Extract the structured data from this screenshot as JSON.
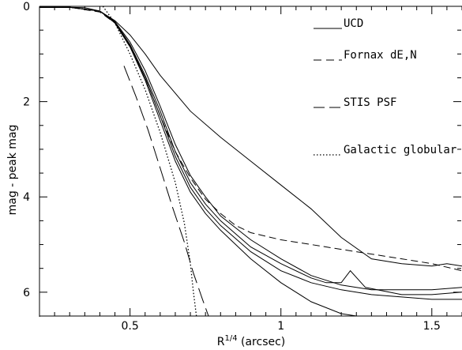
{
  "chart_data": {
    "type": "line",
    "title": "",
    "xlabel": "R",
    "xlabel_sup": "1/4",
    "xlabel_suffix": " (arcsec)",
    "ylabel": "mag - peak mag",
    "xlim": [
      0.2,
      1.6
    ],
    "ylim": [
      0,
      6.5
    ],
    "y_inverted": true,
    "grid": false,
    "legend_placement": "top-right",
    "x_ticks": [
      {
        "value": 0.5,
        "label": "0.5"
      },
      {
        "value": 1.0,
        "label": "1"
      },
      {
        "value": 1.5,
        "label": "1.5"
      }
    ],
    "y_ticks": [
      {
        "value": 0,
        "label": "0"
      },
      {
        "value": 2,
        "label": "2"
      },
      {
        "value": 4,
        "label": "4"
      },
      {
        "value": 6,
        "label": "6"
      }
    ],
    "legend": [
      {
        "label": "UCD",
        "style": "solid"
      },
      {
        "label": "Fornax dE,N",
        "style": "dashed"
      },
      {
        "label": "STIS PSF",
        "style": "longdash"
      },
      {
        "label": "Galactic globular",
        "style": "dotted"
      }
    ],
    "series": [
      {
        "legend": "UCD",
        "style": "solid",
        "points": [
          [
            0.2,
            0.02
          ],
          [
            0.25,
            0.02
          ],
          [
            0.3,
            0.02
          ],
          [
            0.35,
            0.03
          ],
          [
            0.4,
            0.1
          ],
          [
            0.45,
            0.3
          ],
          [
            0.5,
            0.6
          ],
          [
            0.55,
            1.0
          ],
          [
            0.6,
            1.45
          ],
          [
            0.7,
            2.2
          ],
          [
            0.8,
            2.75
          ],
          [
            0.9,
            3.25
          ],
          [
            1.0,
            3.75
          ],
          [
            1.1,
            4.25
          ],
          [
            1.2,
            4.85
          ],
          [
            1.3,
            5.3
          ],
          [
            1.4,
            5.4
          ],
          [
            1.5,
            5.45
          ],
          [
            1.55,
            5.4
          ],
          [
            1.6,
            5.45
          ]
        ]
      },
      {
        "legend": "UCD",
        "style": "solid",
        "points": [
          [
            0.2,
            0.02
          ],
          [
            0.3,
            0.02
          ],
          [
            0.4,
            0.1
          ],
          [
            0.45,
            0.32
          ],
          [
            0.5,
            0.75
          ],
          [
            0.55,
            1.35
          ],
          [
            0.6,
            2.1
          ],
          [
            0.65,
            2.9
          ],
          [
            0.7,
            3.55
          ],
          [
            0.75,
            4.0
          ],
          [
            0.8,
            4.4
          ],
          [
            0.9,
            4.9
          ],
          [
            1.0,
            5.3
          ],
          [
            1.1,
            5.65
          ],
          [
            1.2,
            5.85
          ],
          [
            1.3,
            5.95
          ],
          [
            1.4,
            5.95
          ],
          [
            1.5,
            5.95
          ],
          [
            1.6,
            5.9
          ]
        ]
      },
      {
        "legend": "UCD",
        "style": "solid",
        "points": [
          [
            0.2,
            0.02
          ],
          [
            0.3,
            0.02
          ],
          [
            0.4,
            0.1
          ],
          [
            0.45,
            0.33
          ],
          [
            0.5,
            0.8
          ],
          [
            0.55,
            1.45
          ],
          [
            0.6,
            2.2
          ],
          [
            0.65,
            3.05
          ],
          [
            0.7,
            3.7
          ],
          [
            0.75,
            4.15
          ],
          [
            0.8,
            4.5
          ],
          [
            0.9,
            5.05
          ],
          [
            1.0,
            5.4
          ],
          [
            1.1,
            5.7
          ],
          [
            1.15,
            5.8
          ],
          [
            1.2,
            5.8
          ],
          [
            1.23,
            5.55
          ],
          [
            1.28,
            5.9
          ],
          [
            1.4,
            6.05
          ],
          [
            1.5,
            6.05
          ],
          [
            1.6,
            6.0
          ]
        ]
      },
      {
        "legend": "UCD",
        "style": "solid",
        "points": [
          [
            0.2,
            0.02
          ],
          [
            0.3,
            0.02
          ],
          [
            0.4,
            0.1
          ],
          [
            0.45,
            0.34
          ],
          [
            0.5,
            0.82
          ],
          [
            0.55,
            1.5
          ],
          [
            0.6,
            2.3
          ],
          [
            0.65,
            3.15
          ],
          [
            0.7,
            3.8
          ],
          [
            0.75,
            4.25
          ],
          [
            0.8,
            4.6
          ],
          [
            0.9,
            5.15
          ],
          [
            1.0,
            5.55
          ],
          [
            1.1,
            5.8
          ],
          [
            1.2,
            5.95
          ],
          [
            1.3,
            6.05
          ],
          [
            1.4,
            6.1
          ],
          [
            1.5,
            6.15
          ],
          [
            1.6,
            6.15
          ]
        ]
      },
      {
        "legend": "UCD",
        "style": "solid",
        "points": [
          [
            0.2,
            0.02
          ],
          [
            0.3,
            0.02
          ],
          [
            0.4,
            0.1
          ],
          [
            0.45,
            0.35
          ],
          [
            0.5,
            0.85
          ],
          [
            0.55,
            1.55
          ],
          [
            0.6,
            2.4
          ],
          [
            0.65,
            3.25
          ],
          [
            0.7,
            3.9
          ],
          [
            0.75,
            4.35
          ],
          [
            0.8,
            4.7
          ],
          [
            0.9,
            5.3
          ],
          [
            1.0,
            5.8
          ],
          [
            1.1,
            6.2
          ],
          [
            1.2,
            6.45
          ],
          [
            1.25,
            6.5
          ]
        ]
      },
      {
        "legend": "Fornax dE,N",
        "style": "dashed",
        "points": [
          [
            0.2,
            0.02
          ],
          [
            0.3,
            0.02
          ],
          [
            0.4,
            0.12
          ],
          [
            0.45,
            0.35
          ],
          [
            0.5,
            0.85
          ],
          [
            0.55,
            1.5
          ],
          [
            0.6,
            2.3
          ],
          [
            0.65,
            3.05
          ],
          [
            0.7,
            3.6
          ],
          [
            0.75,
            4.05
          ],
          [
            0.8,
            4.35
          ],
          [
            0.85,
            4.6
          ],
          [
            0.9,
            4.75
          ],
          [
            1.0,
            4.9
          ],
          [
            1.1,
            5.0
          ],
          [
            1.2,
            5.1
          ],
          [
            1.3,
            5.2
          ],
          [
            1.4,
            5.3
          ],
          [
            1.5,
            5.4
          ],
          [
            1.6,
            5.55
          ]
        ]
      },
      {
        "legend": "STIS PSF",
        "style": "longdash",
        "points": [
          [
            0.48,
            1.25
          ],
          [
            0.52,
            1.9
          ],
          [
            0.56,
            2.6
          ],
          [
            0.6,
            3.4
          ],
          [
            0.64,
            4.2
          ],
          [
            0.68,
            4.95
          ],
          [
            0.71,
            5.6
          ],
          [
            0.74,
            6.15
          ],
          [
            0.76,
            6.5
          ]
        ]
      },
      {
        "legend": "Galactic globular",
        "style": "dotted",
        "points": [
          [
            0.41,
            0.0
          ],
          [
            0.45,
            0.35
          ],
          [
            0.5,
            1.0
          ],
          [
            0.55,
            1.75
          ],
          [
            0.6,
            2.65
          ],
          [
            0.65,
            3.7
          ],
          [
            0.68,
            4.55
          ],
          [
            0.7,
            5.4
          ],
          [
            0.71,
            6.0
          ],
          [
            0.72,
            6.5
          ]
        ]
      }
    ]
  }
}
